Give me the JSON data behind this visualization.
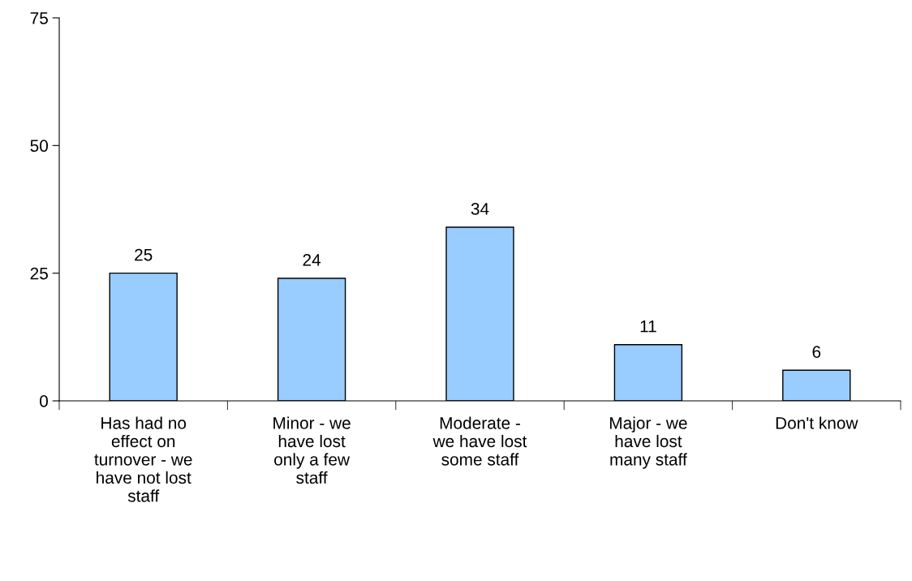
{
  "chart_data": {
    "type": "bar",
    "categories": [
      "Has had no\neffect on\nturnover - we\nhave not lost\nstaff",
      "Minor - we\nhave lost\nonly a few\nstaff",
      "Moderate -\nwe have lost\nsome staff",
      "Major - we\nhave lost\nmany staff",
      "Don't know"
    ],
    "values": [
      25,
      24,
      34,
      11,
      6
    ],
    "color": "#99ccff",
    "ylim": [
      0,
      75
    ],
    "yticks": [
      0,
      25,
      50,
      75
    ],
    "data_labels": true,
    "grid": false,
    "legend": false
  }
}
